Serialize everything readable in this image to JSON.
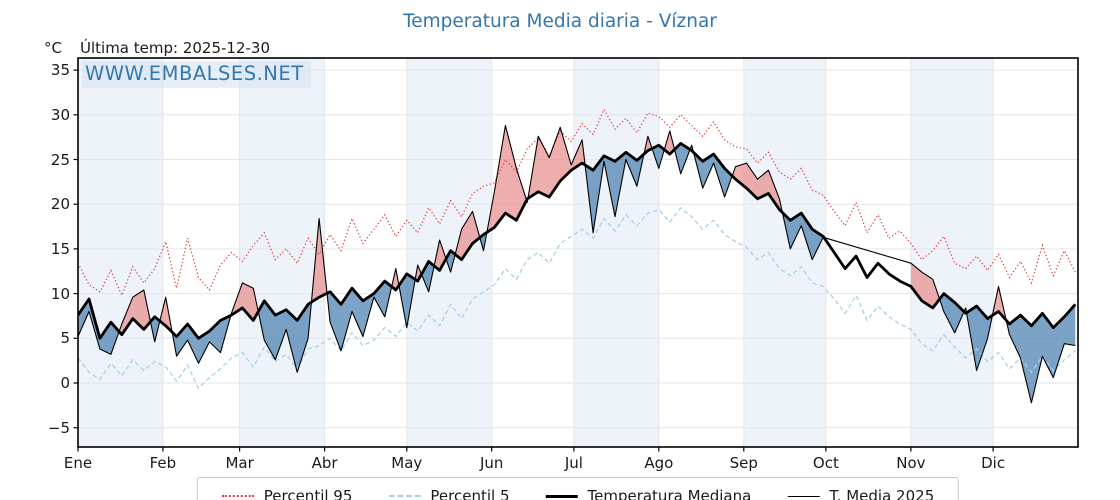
{
  "header": {
    "unit": "°C",
    "last_temp": "Última temp: 2025-12-30"
  },
  "watermark": "WWW.EMBALSES.NET",
  "colors": {
    "accent_blue": "#3377ad",
    "p95_red": "#e03a3a",
    "p5_blue": "#a9d1e6",
    "median_black": "#000000",
    "t2025_black": "#000000",
    "fill_above": "#e98f8f",
    "fill_below": "#4a7fae",
    "band": "#eef3fa",
    "grid": "#e3e6ea",
    "axis": "#000000"
  },
  "chart_data": {
    "type": "line",
    "title": "Temperatura Media diaria - Víznar",
    "subtitle": "Última temp: 2025-12-30",
    "xlabel": "",
    "ylabel": "°C",
    "ylim": [
      -7.1,
      36.4
    ],
    "grid": true,
    "alternating_month_bands": true,
    "x_axis": {
      "tick_labels": [
        "Ene",
        "Feb",
        "Mar",
        "Abr",
        "May",
        "Jun",
        "Jul",
        "Ago",
        "Sep",
        "Oct",
        "Nov",
        "Dic"
      ],
      "month_start_days": [
        1,
        32,
        60,
        91,
        121,
        152,
        182,
        213,
        244,
        274,
        305,
        335
      ],
      "days_in_year": 365
    },
    "y_axis": {
      "ticks": [
        35,
        30,
        25,
        20,
        15,
        10,
        5,
        0,
        -5
      ],
      "unit": "°C"
    },
    "day_grid": {
      "start": 1,
      "step": 4
    },
    "note": "T. Media 2025 has a data gap during October (nulls): the line is bridged straight with no fill.",
    "series": [
      {
        "name": "Percentil 95",
        "style": "dotted",
        "color": "#e03a3a",
        "values": [
          13.4,
          11.0,
          10.2,
          12.6,
          9.8,
          13.0,
          11.2,
          12.8,
          15.8,
          10.6,
          16.2,
          11.8,
          10.4,
          13.2,
          14.6,
          13.6,
          15.4,
          16.8,
          13.8,
          15.0,
          13.4,
          16.2,
          14.4,
          16.6,
          14.8,
          18.4,
          15.6,
          17.2,
          18.8,
          16.4,
          18.2,
          16.8,
          19.6,
          17.8,
          20.4,
          18.6,
          21.2,
          22.0,
          22.4,
          25.0,
          23.6,
          26.2,
          27.4,
          25.4,
          28.2,
          27.0,
          29.0,
          27.8,
          30.6,
          28.4,
          29.6,
          28.0,
          30.2,
          29.8,
          28.6,
          30.0,
          28.8,
          27.6,
          29.2,
          27.2,
          26.4,
          26.2,
          24.6,
          25.8,
          23.6,
          22.8,
          24.0,
          21.6,
          21.0,
          19.2,
          17.6,
          20.2,
          16.8,
          18.8,
          16.2,
          17.0,
          15.6,
          13.8,
          14.8,
          16.4,
          13.4,
          12.8,
          14.2,
          12.6,
          14.4,
          11.8,
          13.6,
          11.2,
          15.4,
          12.0,
          14.8,
          12.4
        ]
      },
      {
        "name": "Percentil 5",
        "style": "dashed",
        "color": "#a9d1e6",
        "values": [
          2.8,
          1.2,
          0.4,
          2.2,
          0.8,
          2.6,
          1.4,
          2.4,
          1.8,
          0.2,
          2.0,
          -0.6,
          0.6,
          1.6,
          2.8,
          3.4,
          1.8,
          4.0,
          2.4,
          3.2,
          1.6,
          3.8,
          4.2,
          5.0,
          3.6,
          5.6,
          4.2,
          4.8,
          6.2,
          5.2,
          6.8,
          5.8,
          7.6,
          6.4,
          8.8,
          7.2,
          9.4,
          10.2,
          11.0,
          12.8,
          11.6,
          13.8,
          14.6,
          13.4,
          15.6,
          16.4,
          17.2,
          16.2,
          18.4,
          17.0,
          18.8,
          17.6,
          19.0,
          19.4,
          18.0,
          19.6,
          18.6,
          17.2,
          18.2,
          16.6,
          15.8,
          15.2,
          13.8,
          14.6,
          12.8,
          12.0,
          13.0,
          11.2,
          10.8,
          9.4,
          7.8,
          9.8,
          7.0,
          8.6,
          7.4,
          6.6,
          6.0,
          4.4,
          3.6,
          5.4,
          4.0,
          2.8,
          3.8,
          2.4,
          3.4,
          1.6,
          2.8,
          1.2,
          3.0,
          1.4,
          2.6,
          3.6
        ]
      },
      {
        "name": "Temperatura Mediana",
        "style": "solid-thick",
        "color": "#000000",
        "values": [
          7.6,
          9.4,
          5.0,
          6.8,
          5.4,
          7.2,
          6.0,
          7.4,
          6.4,
          5.2,
          6.6,
          5.0,
          5.8,
          7.0,
          7.6,
          8.4,
          7.0,
          9.2,
          7.6,
          8.2,
          7.0,
          8.8,
          9.6,
          10.2,
          8.8,
          10.6,
          9.2,
          10.0,
          11.4,
          10.4,
          12.2,
          11.4,
          13.6,
          12.6,
          14.8,
          13.8,
          15.6,
          16.6,
          17.4,
          19.0,
          18.2,
          20.6,
          21.4,
          20.8,
          22.6,
          23.8,
          24.6,
          23.8,
          25.4,
          24.8,
          25.8,
          24.9,
          26.0,
          26.6,
          25.6,
          26.8,
          26.0,
          24.8,
          25.6,
          24.0,
          22.8,
          21.8,
          20.6,
          21.2,
          19.4,
          18.2,
          19.0,
          17.2,
          16.4,
          14.6,
          12.8,
          14.2,
          11.8,
          13.4,
          12.2,
          11.4,
          10.8,
          9.2,
          8.4,
          10.0,
          9.0,
          7.8,
          8.6,
          7.2,
          8.0,
          6.6,
          7.6,
          6.4,
          7.8,
          6.2,
          7.4,
          8.8
        ]
      },
      {
        "name": "T. Media 2025",
        "style": "solid-thin",
        "color": "#000000",
        "values": [
          5.2,
          8.0,
          3.8,
          3.2,
          6.6,
          9.6,
          10.4,
          4.6,
          9.6,
          3.0,
          4.8,
          2.2,
          4.6,
          3.4,
          7.8,
          11.2,
          10.6,
          4.8,
          2.6,
          6.0,
          1.2,
          5.0,
          18.4,
          6.8,
          3.6,
          8.0,
          5.2,
          9.6,
          7.4,
          12.8,
          6.2,
          13.2,
          10.2,
          16.0,
          12.4,
          17.2,
          19.2,
          14.8,
          21.4,
          28.8,
          24.0,
          20.2,
          27.6,
          25.2,
          28.6,
          24.4,
          27.2,
          16.8,
          24.8,
          18.6,
          25.0,
          22.0,
          27.6,
          24.0,
          28.2,
          23.4,
          26.6,
          21.8,
          24.6,
          20.8,
          24.2,
          24.6,
          22.8,
          23.8,
          20.6,
          15.0,
          17.6,
          13.8,
          16.3,
          null,
          null,
          null,
          null,
          null,
          null,
          null,
          13.4,
          12.4,
          11.6,
          8.0,
          5.6,
          8.4,
          1.4,
          5.0,
          10.8,
          5.4,
          2.8,
          -2.2,
          3.0,
          0.6,
          4.4,
          4.2
        ]
      }
    ],
    "fills": {
      "between": [
        "T. Media 2025",
        "Temperatura Mediana"
      ],
      "above_color": "#e98f8f",
      "below_color": "#4a7fae",
      "opacity": 0.72
    },
    "legend": {
      "position": "bottom-center",
      "entries": [
        "Percentil 95",
        "Percentil 5",
        "Temperatura Mediana",
        "T. Media 2025"
      ]
    }
  }
}
